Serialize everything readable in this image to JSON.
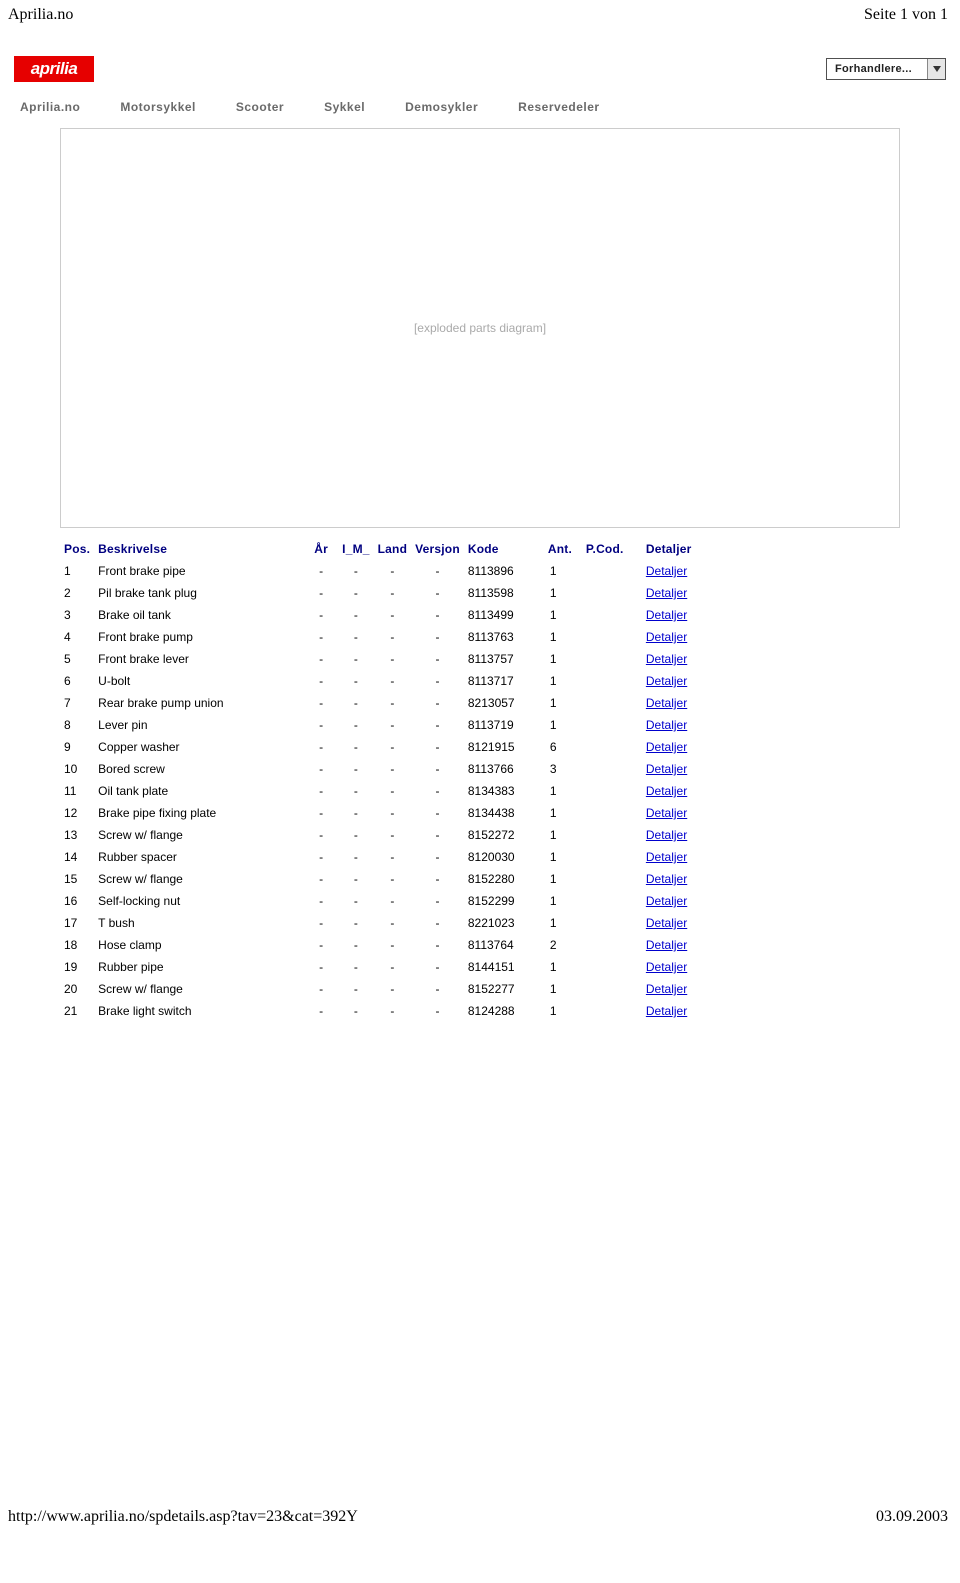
{
  "page_header": {
    "left": "Aprilia.no",
    "right": "Seite 1 von 1"
  },
  "logo_text": "aprilia",
  "dropdown": {
    "label": "Forhandlere..."
  },
  "nav": [
    "Aprilia.no",
    "Motorsykkel",
    "Scooter",
    "Sykkel",
    "Demosykler",
    "Reservedeler"
  ],
  "diagram_placeholder": "[exploded parts diagram]",
  "table": {
    "headers": [
      "Pos.",
      "Beskrivelse",
      "År",
      "I_M_",
      "Land",
      "Versjon",
      "Kode",
      "Ant.",
      "P.Cod.",
      "Detaljer"
    ],
    "detail_label": "Detaljer",
    "rows": [
      {
        "pos": "1",
        "desc": "Front brake pipe",
        "ar": "-",
        "im": "-",
        "land": "-",
        "ver": "-",
        "kode": "8113896",
        "ant": "1",
        "pcod": ""
      },
      {
        "pos": "2",
        "desc": "Pil brake tank plug",
        "ar": "-",
        "im": "-",
        "land": "-",
        "ver": "-",
        "kode": "8113598",
        "ant": "1",
        "pcod": ""
      },
      {
        "pos": "3",
        "desc": "Brake oil tank",
        "ar": "-",
        "im": "-",
        "land": "-",
        "ver": "-",
        "kode": "8113499",
        "ant": "1",
        "pcod": ""
      },
      {
        "pos": "4",
        "desc": "Front brake pump",
        "ar": "-",
        "im": "-",
        "land": "-",
        "ver": "-",
        "kode": "8113763",
        "ant": "1",
        "pcod": ""
      },
      {
        "pos": "5",
        "desc": "Front brake lever",
        "ar": "-",
        "im": "-",
        "land": "-",
        "ver": "-",
        "kode": "8113757",
        "ant": "1",
        "pcod": ""
      },
      {
        "pos": "6",
        "desc": "U-bolt",
        "ar": "-",
        "im": "-",
        "land": "-",
        "ver": "-",
        "kode": "8113717",
        "ant": "1",
        "pcod": ""
      },
      {
        "pos": "7",
        "desc": "Rear brake pump union",
        "ar": "-",
        "im": "-",
        "land": "-",
        "ver": "-",
        "kode": "8213057",
        "ant": "1",
        "pcod": ""
      },
      {
        "pos": "8",
        "desc": "Lever pin",
        "ar": "-",
        "im": "-",
        "land": "-",
        "ver": "-",
        "kode": "8113719",
        "ant": "1",
        "pcod": ""
      },
      {
        "pos": "9",
        "desc": "Copper washer",
        "ar": "-",
        "im": "-",
        "land": "-",
        "ver": "-",
        "kode": "8121915",
        "ant": "6",
        "pcod": ""
      },
      {
        "pos": "10",
        "desc": "Bored screw",
        "ar": "-",
        "im": "-",
        "land": "-",
        "ver": "-",
        "kode": "8113766",
        "ant": "3",
        "pcod": ""
      },
      {
        "pos": "11",
        "desc": "Oil tank plate",
        "ar": "-",
        "im": "-",
        "land": "-",
        "ver": "-",
        "kode": "8134383",
        "ant": "1",
        "pcod": ""
      },
      {
        "pos": "12",
        "desc": "Brake pipe fixing plate",
        "ar": "-",
        "im": "-",
        "land": "-",
        "ver": "-",
        "kode": "8134438",
        "ant": "1",
        "pcod": ""
      },
      {
        "pos": "13",
        "desc": "Screw w/ flange",
        "ar": "-",
        "im": "-",
        "land": "-",
        "ver": "-",
        "kode": "8152272",
        "ant": "1",
        "pcod": ""
      },
      {
        "pos": "14",
        "desc": "Rubber spacer",
        "ar": "-",
        "im": "-",
        "land": "-",
        "ver": "-",
        "kode": "8120030",
        "ant": "1",
        "pcod": ""
      },
      {
        "pos": "15",
        "desc": "Screw w/ flange",
        "ar": "-",
        "im": "-",
        "land": "-",
        "ver": "-",
        "kode": "8152280",
        "ant": "1",
        "pcod": ""
      },
      {
        "pos": "16",
        "desc": "Self-locking nut",
        "ar": "-",
        "im": "-",
        "land": "-",
        "ver": "-",
        "kode": "8152299",
        "ant": "1",
        "pcod": ""
      },
      {
        "pos": "17",
        "desc": "T bush",
        "ar": "-",
        "im": "-",
        "land": "-",
        "ver": "-",
        "kode": "8221023",
        "ant": "1",
        "pcod": ""
      },
      {
        "pos": "18",
        "desc": "Hose clamp",
        "ar": "-",
        "im": "-",
        "land": "-",
        "ver": "-",
        "kode": "8113764",
        "ant": "2",
        "pcod": ""
      },
      {
        "pos": "19",
        "desc": "Rubber pipe",
        "ar": "-",
        "im": "-",
        "land": "-",
        "ver": "-",
        "kode": "8144151",
        "ant": "1",
        "pcod": ""
      },
      {
        "pos": "20",
        "desc": "Screw w/ flange",
        "ar": "-",
        "im": "-",
        "land": "-",
        "ver": "-",
        "kode": "8152277",
        "ant": "1",
        "pcod": ""
      },
      {
        "pos": "21",
        "desc": "Brake light switch",
        "ar": "-",
        "im": "-",
        "land": "-",
        "ver": "-",
        "kode": "8124288",
        "ant": "1",
        "pcod": ""
      }
    ]
  },
  "page_footer": {
    "left": "http://www.aprilia.no/spdetails.asp?tav=23&cat=392Y",
    "right": "03.09.2003"
  },
  "colors": {
    "link": "#0000cd",
    "header_text": "#000080",
    "nav_text": "#6a6a6a",
    "logo_bg": "#e60000"
  }
}
